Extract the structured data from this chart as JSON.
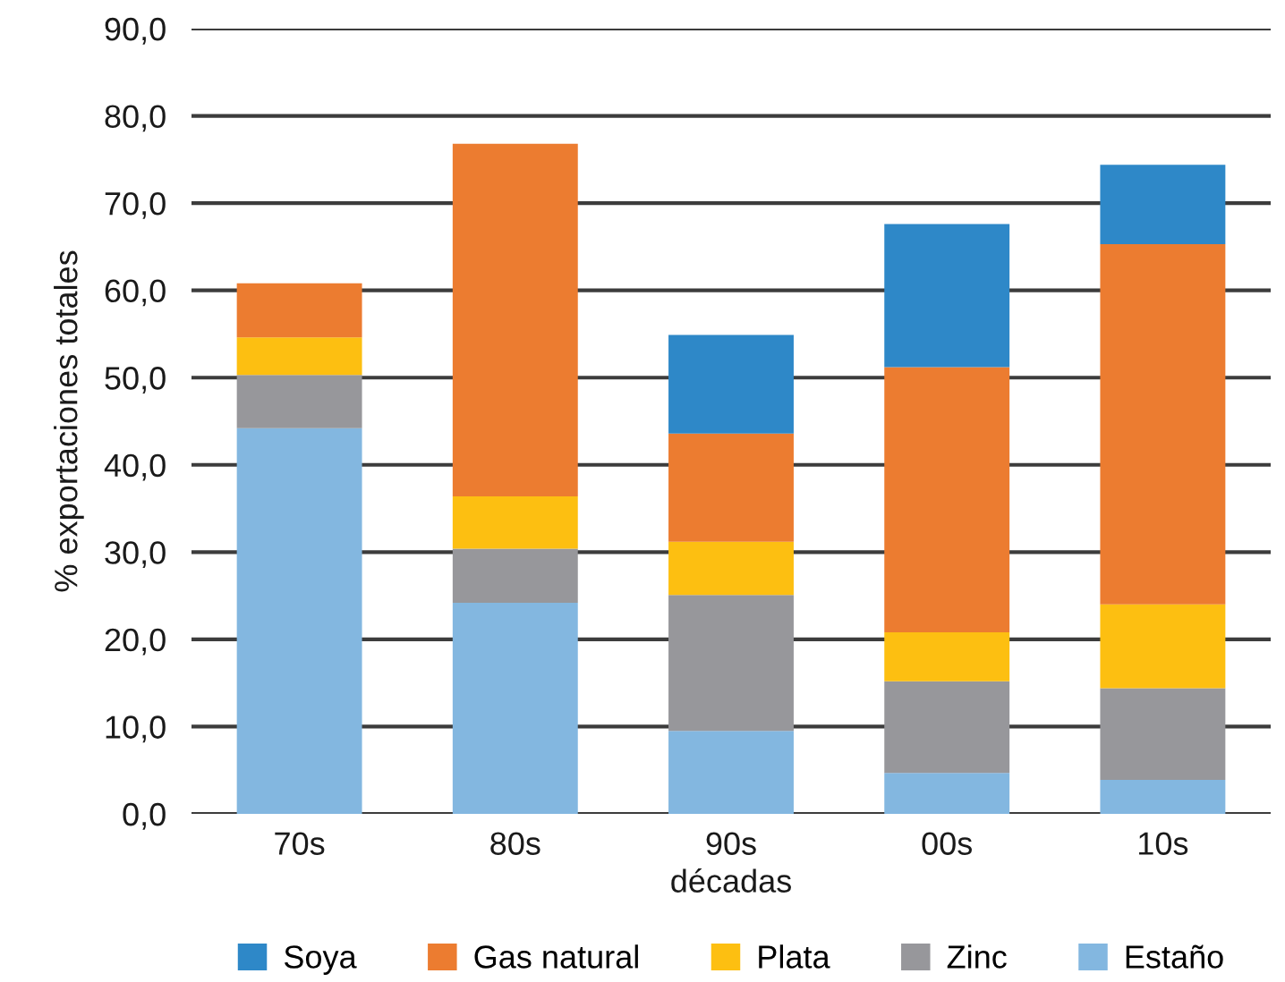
{
  "chart_data": {
    "type": "bar",
    "stacked": true,
    "xlabel": "décadas",
    "ylabel": "% exportaciones totales",
    "categories": [
      "70s",
      "80s",
      "90s",
      "00s",
      "10s"
    ],
    "series": [
      {
        "name": "Estaño",
        "color": "#83b7e0",
        "values": [
          44.2,
          24.2,
          9.5,
          4.7,
          3.9
        ]
      },
      {
        "name": "Zinc",
        "color": "#97979b",
        "values": [
          6.1,
          6.2,
          15.6,
          10.5,
          10.5
        ]
      },
      {
        "name": "Plata",
        "color": "#fdbf11",
        "values": [
          4.3,
          6.0,
          6.1,
          5.6,
          9.6
        ]
      },
      {
        "name": "Gas natural",
        "color": "#ec7c30",
        "values": [
          6.2,
          40.4,
          12.4,
          30.4,
          41.3
        ]
      },
      {
        "name": "Soya",
        "color": "#2e88c8",
        "values": [
          null,
          null,
          11.3,
          16.4,
          9.1
        ]
      }
    ],
    "ylim": [
      0,
      90
    ],
    "yticks": [
      {
        "value": 0,
        "label": "0,0"
      },
      {
        "value": 10,
        "label": "10,0"
      },
      {
        "value": 20,
        "label": "20,0"
      },
      {
        "value": 30,
        "label": "30,0"
      },
      {
        "value": 40,
        "label": "40,0"
      },
      {
        "value": 50,
        "label": "50,0"
      },
      {
        "value": 60,
        "label": "60,0"
      },
      {
        "value": 70,
        "label": "70,0"
      },
      {
        "value": 80,
        "label": "80,0"
      },
      {
        "value": 90,
        "label": "90,0"
      }
    ],
    "grid": "y",
    "legend": "bottom"
  }
}
